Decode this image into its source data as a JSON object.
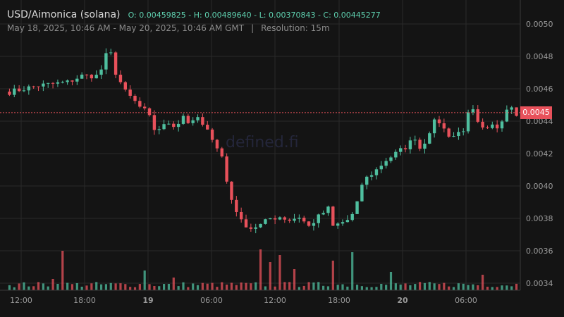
{
  "header": {
    "title": "USD/Aimonica (solana)",
    "ohlc": "O: 0.00459825 - H: 0.00489640 - L: 0.00370843 - C: 0.00445277",
    "range": "May 18, 2025, 10:46 AM - May 20, 2025, 10:46 AM GMT",
    "separator": "|",
    "resolution": "Resolution: 15m"
  },
  "watermark": "defined.fi",
  "current_price_label": "0.0045",
  "colors": {
    "up": "#4fbf9f",
    "down": "#e8515b",
    "background": "#141414",
    "grid": "#2a2a2a"
  },
  "chart_data": {
    "type": "candlestick",
    "y_ticks": [
      "0.0050",
      "0.0048",
      "0.0046",
      "0.0044",
      "0.0042",
      "0.0040",
      "0.0038",
      "0.0036",
      "0.0034"
    ],
    "x_ticks": [
      {
        "label": "12:00",
        "bold": false
      },
      {
        "label": "18:00",
        "bold": false
      },
      {
        "label": "19",
        "bold": true
      },
      {
        "label": "06:00",
        "bold": false
      },
      {
        "label": "12:00",
        "bold": false
      },
      {
        "label": "18:00",
        "bold": false
      },
      {
        "label": "20",
        "bold": true
      },
      {
        "label": "06:00",
        "bold": false
      }
    ],
    "current_price": 0.00445277,
    "close_path": [
      [
        0,
        0.00458
      ],
      [
        6,
        0.00462
      ],
      [
        12,
        0.00464
      ],
      [
        15,
        0.00468
      ],
      [
        18,
        0.00468
      ],
      [
        19.5,
        0.00474
      ],
      [
        20.5,
        0.00487
      ],
      [
        22,
        0.0047
      ],
      [
        24,
        0.00458
      ],
      [
        26,
        0.00452
      ],
      [
        27.5,
        0.00447
      ],
      [
        28.5,
        0.00446
      ],
      [
        30,
        0.00435
      ],
      [
        31.5,
        0.00436
      ],
      [
        33,
        0.00439
      ],
      [
        34.5,
        0.00437
      ],
      [
        35.5,
        0.00441
      ],
      [
        36.5,
        0.00446
      ],
      [
        37.5,
        0.00433
      ],
      [
        38.5,
        0.00445
      ],
      [
        40,
        0.00437
      ],
      [
        42,
        0.0043
      ],
      [
        44,
        0.00418
      ],
      [
        45.5,
        0.00395
      ],
      [
        47,
        0.00385
      ],
      [
        48,
        0.00378
      ],
      [
        50,
        0.00374
      ],
      [
        52,
        0.00376
      ],
      [
        54,
        0.0038
      ],
      [
        56,
        0.00381
      ],
      [
        58,
        0.00379
      ],
      [
        60,
        0.00381
      ],
      [
        62,
        0.00375
      ],
      [
        64,
        0.00381
      ],
      [
        66,
        0.00386
      ],
      [
        67,
        0.00375
      ],
      [
        68.5,
        0.00377
      ],
      [
        70,
        0.00379
      ],
      [
        71,
        0.00382
      ],
      [
        71.8,
        0.0038
      ],
      [
        72.2,
        0.00398
      ],
      [
        74,
        0.00405
      ],
      [
        76,
        0.0041
      ],
      [
        78,
        0.00416
      ],
      [
        80,
        0.0042
      ],
      [
        82,
        0.00424
      ],
      [
        84,
        0.0043
      ],
      [
        85.2,
        0.00422
      ],
      [
        87,
        0.00434
      ],
      [
        88.5,
        0.00442
      ],
      [
        90,
        0.00435
      ],
      [
        91.5,
        0.0043
      ],
      [
        93,
        0.00433
      ],
      [
        94.5,
        0.00436
      ],
      [
        95.5,
        0.00452
      ],
      [
        96.5,
        0.0044
      ],
      [
        98.5,
        0.00433
      ],
      [
        100,
        0.00437
      ],
      [
        101.5,
        0.00436
      ],
      [
        102.5,
        0.00447
      ],
      [
        104,
        0.0045
      ],
      [
        105,
        0.00445
      ]
    ],
    "volume_spikes": [
      {
        "h": 16,
        "up": false
      },
      {
        "h": 56,
        "up": false
      },
      {
        "h": 28,
        "up": true
      },
      {
        "h": 18,
        "up": false
      },
      {
        "h": 58,
        "up": false
      },
      {
        "h": 40,
        "up": false
      },
      {
        "h": 50,
        "up": false
      },
      {
        "h": 30,
        "up": false
      },
      {
        "h": 42,
        "up": false
      },
      {
        "h": 54,
        "up": true
      },
      {
        "h": 26,
        "up": true
      },
      {
        "h": 22,
        "up": false
      }
    ]
  }
}
